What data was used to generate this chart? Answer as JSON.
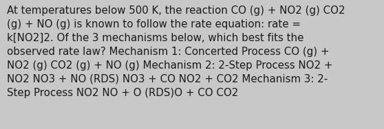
{
  "text": "At temperatures below 500 K, the reaction CO (g) + NO2 (g) CO2\n(g) + NO (g) is known to follow the rate equation: rate =\nk[NO2]2. Of the 3 mechanisms below, which best fits the\nobserved rate law? Mechanism 1: Concerted Process CO (g) +\nNO2 (g) CO2 (g) + NO (g) Mechanism 2: 2-Step Process NO2 +\nNO2 NO3 + NO (RDS) NO3 + CO NO2 + CO2 Mechanism 3: 2-\nStep Process NO2 NO + O (RDS)O + CO CO2",
  "background_color": "#c8c8c8",
  "text_color": "#1a1a1a",
  "font_size": 10.8,
  "fig_width": 5.58,
  "fig_height": 1.88,
  "dpi": 100
}
